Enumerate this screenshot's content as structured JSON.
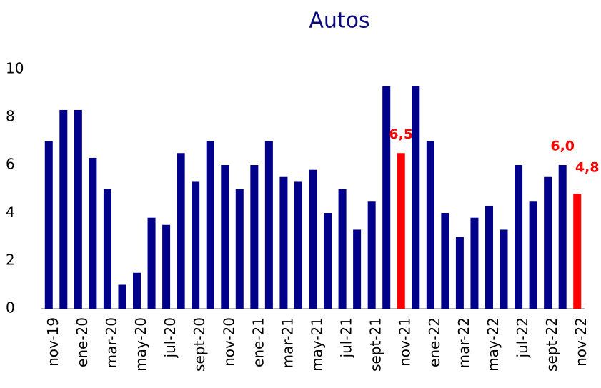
{
  "chart_data": {
    "type": "bar",
    "title": "Autos",
    "categories": [
      "nov-19",
      null,
      "ene-20",
      null,
      "mar-20",
      null,
      "may-20",
      null,
      "jul-20",
      null,
      "sept-20",
      null,
      "nov-20",
      null,
      "ene-21",
      null,
      "mar-21",
      null,
      "may-21",
      null,
      "jul-21",
      null,
      "sept-21",
      null,
      "nov-21",
      null,
      "ene-22",
      null,
      "mar-22",
      null,
      "may-22",
      null,
      "jul-22",
      null,
      "sept-22",
      null,
      "nov-22"
    ],
    "values": [
      7.0,
      8.3,
      8.3,
      6.3,
      5.0,
      1.0,
      1.5,
      3.8,
      3.5,
      6.5,
      5.3,
      7.0,
      6.0,
      5.0,
      6.0,
      7.0,
      5.5,
      5.3,
      5.8,
      4.0,
      5.0,
      3.3,
      4.5,
      9.3,
      6.5,
      9.3,
      7.0,
      4.0,
      3.0,
      3.8,
      4.3,
      3.3,
      6.0,
      4.5,
      5.5,
      6.0,
      4.8
    ],
    "value_labels": [
      null,
      null,
      null,
      null,
      null,
      null,
      null,
      null,
      null,
      null,
      null,
      null,
      null,
      null,
      null,
      null,
      null,
      null,
      null,
      null,
      null,
      null,
      null,
      null,
      "6,5",
      null,
      null,
      null,
      null,
      null,
      null,
      null,
      null,
      null,
      null,
      "6,0",
      "4,8"
    ],
    "colors": [
      "#00008b",
      "#00008b",
      "#00008b",
      "#00008b",
      "#00008b",
      "#00008b",
      "#00008b",
      "#00008b",
      "#00008b",
      "#00008b",
      "#00008b",
      "#00008b",
      "#00008b",
      "#00008b",
      "#00008b",
      "#00008b",
      "#00008b",
      "#00008b",
      "#00008b",
      "#00008b",
      "#00008b",
      "#00008b",
      "#00008b",
      "#00008b",
      "#ff0000",
      "#00008b",
      "#00008b",
      "#00008b",
      "#00008b",
      "#00008b",
      "#00008b",
      "#00008b",
      "#00008b",
      "#00008b",
      "#00008b",
      "#00008b",
      "#ff0000"
    ],
    "label_color": "#ff0000",
    "ylim": [
      0,
      10
    ],
    "yticks": [
      0,
      2,
      4,
      6,
      8,
      10
    ],
    "grid": false
  }
}
